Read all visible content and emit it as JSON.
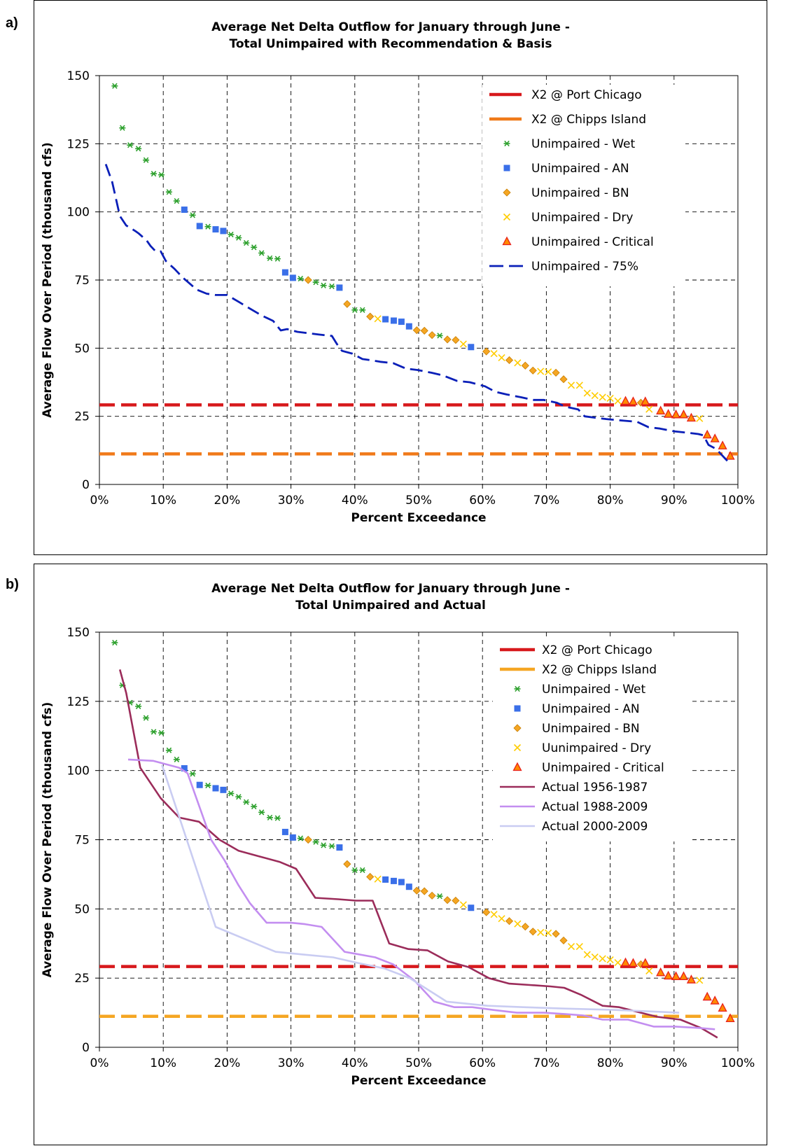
{
  "panels": [
    {
      "tag": "a)"
    },
    {
      "tag": "b)"
    }
  ],
  "chart_data": [
    {
      "type": "scatter",
      "title": "Average Net Delta Outflow for January through June -",
      "subtitle": "Total Unimpaired with Recommendation & Basis",
      "xlabel": "Percent Exceedance",
      "ylabel": "Average Flow Over Period (thousand cfs)",
      "xlim": [
        0,
        100
      ],
      "ylim": [
        0,
        150
      ],
      "xticks": [
        "0%",
        "10%",
        "20%",
        "30%",
        "40%",
        "50%",
        "60%",
        "70%",
        "80%",
        "90%",
        "100%"
      ],
      "yticks": [
        "0",
        "25",
        "50",
        "75",
        "100",
        "125",
        "150"
      ],
      "grid": true,
      "legend_position": "top-right",
      "colors": {
        "port_chicago": "#d7191c",
        "chipps": "#f07a1a",
        "wet": "#2ca02c",
        "an": "#3a6fe8",
        "bn": "#f5a623",
        "dry": "#ffcc00",
        "critical": "#e8201c",
        "dashed75": "#0a1fb8"
      },
      "series": [
        {
          "name": "X2 @ Port Chicago",
          "kind": "hline",
          "y": 29.2,
          "color": "#d7191c"
        },
        {
          "name": "X2 @ Chipps Island",
          "kind": "hline",
          "y": 11.2,
          "color": "#f07a1a"
        },
        {
          "name": "Unimpaired - Wet",
          "kind": "markers",
          "marker": "star",
          "color": "#2ca02c",
          "x": [
            2.4,
            3.6,
            4.8,
            6.1,
            7.3,
            8.5,
            9.7,
            10.9,
            12.1,
            14.6,
            17.0,
            20.6,
            21.8,
            23.0,
            24.2,
            25.4,
            26.7,
            27.9,
            31.5,
            33.9,
            35.1,
            36.4,
            40.0,
            41.2,
            53.3
          ],
          "y": [
            146.2,
            130.8,
            124.5,
            123.2,
            119.0,
            114.0,
            113.6,
            107.3,
            104.0,
            98.8,
            94.6,
            91.7,
            90.5,
            88.6,
            87.0,
            84.9,
            83.0,
            82.8,
            75.5,
            74.2,
            73.0,
            72.7,
            64.0,
            64.0,
            54.6
          ]
        },
        {
          "name": "Unimpaired - AN",
          "kind": "markers",
          "marker": "square",
          "color": "#3a6fe8",
          "x": [
            13.3,
            15.7,
            18.2,
            19.4,
            29.1,
            30.3,
            37.6,
            44.8,
            46.1,
            47.3,
            48.5,
            58.2
          ],
          "y": [
            100.8,
            94.8,
            93.6,
            93.0,
            77.8,
            75.8,
            72.2,
            60.6,
            60.1,
            59.7,
            58.0,
            50.4
          ]
        },
        {
          "name": "Unimpaired - BN",
          "kind": "markers",
          "marker": "diamond",
          "color": "#f5a623",
          "x": [
            32.7,
            38.8,
            42.4,
            49.7,
            50.9,
            52.1,
            54.5,
            55.8,
            60.6,
            64.2,
            66.7,
            67.9,
            71.5,
            72.7,
            84.8
          ],
          "y": [
            75.0,
            66.2,
            61.6,
            56.6,
            56.4,
            54.8,
            53.2,
            53.0,
            48.8,
            45.6,
            43.6,
            41.8,
            41.0,
            38.6,
            30.0
          ]
        },
        {
          "name": "Unimpaired - Dry",
          "kind": "markers",
          "marker": "x",
          "color": "#ffcc00",
          "x": [
            43.6,
            57.0,
            61.8,
            63.0,
            65.5,
            69.1,
            70.3,
            73.9,
            75.2,
            76.4,
            77.6,
            78.8,
            80.0,
            81.2,
            86.1,
            94.0
          ],
          "y": [
            60.8,
            51.5,
            48.0,
            46.5,
            44.6,
            41.5,
            41.3,
            36.4,
            36.4,
            33.5,
            32.6,
            32.0,
            31.6,
            30.6,
            27.6,
            24.2
          ]
        },
        {
          "name": "Unimpaired - Critical",
          "kind": "markers",
          "marker": "triangle",
          "color": "#e8201c",
          "x": [
            82.4,
            83.6,
            85.5,
            87.9,
            89.1,
            90.3,
            91.5,
            92.7,
            95.2,
            96.4,
            97.6,
            98.8
          ],
          "y": [
            30.6,
            30.4,
            30.4,
            27.0,
            25.8,
            25.6,
            25.6,
            24.4,
            18.2,
            16.8,
            14.2,
            10.4
          ]
        },
        {
          "name": "Unimpaired - 75%",
          "kind": "dashed-line",
          "color": "#0a1fb8",
          "x": [
            1.0,
            2.0,
            3.2,
            4.2,
            5.6,
            6.2,
            7.4,
            8.0,
            8.8,
            9.6,
            10.4,
            11.8,
            13.0,
            14.0,
            15.2,
            16.8,
            18.2,
            20.0,
            21.8,
            23.6,
            25.4,
            27.2,
            28.4,
            29.4,
            31.0,
            34.4,
            36.4,
            37.2,
            38.0,
            39.6,
            41.2,
            42.8,
            44.0,
            46.0,
            48.0,
            49.8,
            52.0,
            53.8,
            56.0,
            58.0,
            60.4,
            62.0,
            63.8,
            66.0,
            68.0,
            69.6,
            71.6,
            73.0,
            75.0,
            76.0,
            77.6,
            79.4,
            81.6,
            84.2,
            86.0,
            87.8,
            90.0,
            92.0,
            93.8,
            94.6,
            95.4,
            96.6,
            97.4,
            98.0,
            98.6
          ],
          "y": [
            117.5,
            111.0,
            98.5,
            95.0,
            93.0,
            92.0,
            89.5,
            87.5,
            85.5,
            85.5,
            82.0,
            79.0,
            76.0,
            74.0,
            71.5,
            70.0,
            69.5,
            69.5,
            67.0,
            64.5,
            62.0,
            60.0,
            56.5,
            57.0,
            56.0,
            55.0,
            54.5,
            51.5,
            49.0,
            48.0,
            46.0,
            45.5,
            45.0,
            44.5,
            42.5,
            42.0,
            41.0,
            40.0,
            38.0,
            37.5,
            36.0,
            34.0,
            33.0,
            32.0,
            31.0,
            31.0,
            30.0,
            28.5,
            27.5,
            25.0,
            24.5,
            24.0,
            23.5,
            23.0,
            21.0,
            20.5,
            19.5,
            19.0,
            18.5,
            18.0,
            14.5,
            13.0,
            11.0,
            9.5,
            8.0
          ]
        }
      ]
    },
    {
      "type": "scatter",
      "title": "Average Net Delta Outflow for January through June -",
      "subtitle": "Total Unimpaired and Actual",
      "xlabel": "Percent Exceedance",
      "ylabel": "Average Flow Over Period (thousand cfs)",
      "xlim": [
        0,
        100
      ],
      "ylim": [
        0,
        150
      ],
      "xticks": [
        "0%",
        "10%",
        "20%",
        "30%",
        "40%",
        "50%",
        "60%",
        "70%",
        "80%",
        "90%",
        "100%"
      ],
      "yticks": [
        "0",
        "25",
        "50",
        "75",
        "100",
        "125",
        "150"
      ],
      "grid": true,
      "legend_position": "top-right",
      "colors": {
        "port_chicago": "#d7191c",
        "chipps": "#f5a623",
        "wet": "#2ca02c",
        "an": "#3a6fe8",
        "bn": "#f5a623",
        "dry": "#ffcc00",
        "critical": "#e8201c",
        "actual1": "#9b2c5a",
        "actual2": "#c38ef0",
        "actual3": "#c9ccf2"
      },
      "series": [
        {
          "name": "X2 @ Port Chicago",
          "kind": "hline",
          "y": 29.2,
          "color": "#d7191c"
        },
        {
          "name": "X2 @ Chipps Island",
          "kind": "hline",
          "y": 11.2,
          "color": "#f5a623"
        },
        {
          "name": "Unimpaired - Wet",
          "kind": "markers",
          "marker": "star",
          "color": "#2ca02c",
          "x": [
            2.4,
            3.6,
            4.8,
            6.1,
            7.3,
            8.5,
            9.7,
            10.9,
            12.1,
            14.6,
            17.0,
            20.6,
            21.8,
            23.0,
            24.2,
            25.4,
            26.7,
            27.9,
            31.5,
            33.9,
            35.1,
            36.4,
            40.0,
            41.2,
            53.3
          ],
          "y": [
            146.2,
            130.8,
            124.5,
            123.2,
            119.0,
            114.0,
            113.6,
            107.3,
            104.0,
            98.8,
            94.6,
            91.7,
            90.5,
            88.6,
            87.0,
            84.9,
            83.0,
            82.8,
            75.5,
            74.2,
            73.0,
            72.7,
            64.0,
            64.0,
            54.6
          ]
        },
        {
          "name": "Unimpaired - AN",
          "kind": "markers",
          "marker": "square",
          "color": "#3a6fe8",
          "x": [
            13.3,
            15.7,
            18.2,
            19.4,
            29.1,
            30.3,
            37.6,
            44.8,
            46.1,
            47.3,
            48.5,
            58.2
          ],
          "y": [
            100.8,
            94.8,
            93.6,
            93.0,
            77.8,
            75.8,
            72.2,
            60.6,
            60.1,
            59.7,
            58.0,
            50.4
          ]
        },
        {
          "name": "Unimpaired - BN",
          "kind": "markers",
          "marker": "diamond",
          "color": "#f5a623",
          "x": [
            32.7,
            38.8,
            42.4,
            49.7,
            50.9,
            52.1,
            54.5,
            55.8,
            60.6,
            64.2,
            66.7,
            67.9,
            71.5,
            72.7,
            84.8
          ],
          "y": [
            75.0,
            66.2,
            61.6,
            56.6,
            56.4,
            54.8,
            53.2,
            53.0,
            48.8,
            45.6,
            43.6,
            41.8,
            41.0,
            38.6,
            30.0
          ]
        },
        {
          "name": "Uunimpaired - Dry",
          "kind": "markers",
          "marker": "x",
          "color": "#ffcc00",
          "x": [
            43.6,
            57.0,
            61.8,
            63.0,
            65.5,
            69.1,
            70.3,
            73.9,
            75.2,
            76.4,
            77.6,
            78.8,
            80.0,
            81.2,
            86.1,
            94.0
          ],
          "y": [
            60.8,
            51.5,
            48.0,
            46.5,
            44.6,
            41.5,
            41.3,
            36.4,
            36.4,
            33.5,
            32.6,
            32.0,
            31.6,
            30.6,
            27.6,
            24.2
          ]
        },
        {
          "name": "Unimpaired - Critical",
          "kind": "markers",
          "marker": "triangle",
          "color": "#e8201c",
          "x": [
            82.4,
            83.6,
            85.5,
            87.9,
            89.1,
            90.3,
            91.5,
            92.7,
            95.2,
            96.4,
            97.6,
            98.8
          ],
          "y": [
            30.6,
            30.4,
            30.4,
            27.0,
            25.8,
            25.6,
            25.6,
            24.4,
            18.2,
            16.8,
            14.2,
            10.4
          ]
        },
        {
          "name": "Actual 1956-1987",
          "kind": "line",
          "color": "#9b2c5a",
          "x": [
            3.2,
            4.2,
            6.4,
            9.6,
            12.5,
            15.6,
            18.8,
            21.8,
            25.0,
            28.2,
            30.8,
            33.8,
            37.4,
            40.2,
            42.8,
            45.4,
            48.4,
            51.4,
            54.6,
            57.8,
            61.0,
            64.2,
            67.4,
            70.6,
            72.8,
            75.4,
            78.8,
            81.4,
            84.8,
            87.4,
            91.0,
            94.2,
            96.8
          ],
          "y": [
            136.5,
            128.0,
            101.0,
            90.0,
            83.0,
            81.5,
            75.0,
            71.0,
            69.0,
            67.0,
            64.5,
            54.0,
            53.5,
            53.0,
            53.0,
            37.5,
            35.5,
            35.0,
            31.0,
            29.0,
            25.0,
            23.0,
            22.5,
            22.0,
            21.5,
            19.0,
            15.0,
            14.5,
            12.5,
            11.0,
            10.0,
            7.0,
            3.5
          ]
        },
        {
          "name": "Actual 1988-2009",
          "kind": "line",
          "color": "#c38ef0",
          "x": [
            4.5,
            8.4,
            12.5,
            13.8,
            17.5,
            19.6,
            21.8,
            23.6,
            26.2,
            30.0,
            32.2,
            34.8,
            38.4,
            43.2,
            46.0,
            49.4,
            52.4,
            55.6,
            58.4,
            61.6,
            65.4,
            69.6,
            73.0,
            75.8,
            78.8,
            82.8,
            86.8,
            90.2,
            93.8,
            96.4
          ],
          "y": [
            104.0,
            103.5,
            101.0,
            99.0,
            75.0,
            67.5,
            58.5,
            52.0,
            45.0,
            45.0,
            44.5,
            43.5,
            34.5,
            32.5,
            30.0,
            24.0,
            16.5,
            14.5,
            14.5,
            13.5,
            12.5,
            12.5,
            12.0,
            11.5,
            10.0,
            10.0,
            7.5,
            7.5,
            7.0,
            6.5
          ]
        },
        {
          "name": "Actual 2000-2009",
          "kind": "line",
          "color": "#c9ccf2",
          "x": [
            9.8,
            18.2,
            27.6,
            32.0,
            36.6,
            40.4,
            44.6,
            48.6,
            54.4,
            60.8,
            66.4,
            72.8,
            80.6,
            85.8,
            90.8
          ],
          "y": [
            102.0,
            43.5,
            34.5,
            33.5,
            32.5,
            30.5,
            28.5,
            25.0,
            16.5,
            15.0,
            14.5,
            14.0,
            13.5,
            13.0,
            12.5
          ]
        }
      ]
    }
  ]
}
